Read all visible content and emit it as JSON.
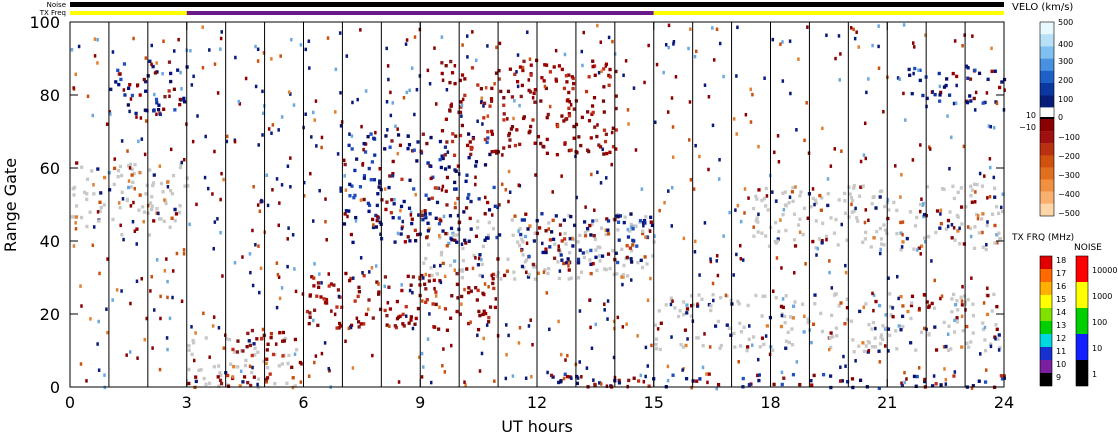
{
  "strip": {
    "noise_label": "Noise",
    "txfreq_label": "TX Freq",
    "noise_color": "#000000",
    "txfreq_segments": [
      {
        "from": 0,
        "to": 3,
        "color": "#ffff00"
      },
      {
        "from": 3,
        "to": 15,
        "color": "#6a1b8a"
      },
      {
        "from": 15,
        "to": 24,
        "color": "#ffff00"
      }
    ]
  },
  "chart_data": {
    "type": "heatmap",
    "xlabel": "UT hours",
    "ylabel": "Range Gate",
    "xlim": [
      0,
      24
    ],
    "ylim": [
      0,
      100
    ],
    "xticks": [
      "0",
      "3",
      "6",
      "9",
      "12",
      "15",
      "18",
      "21",
      "24"
    ],
    "yticks": [
      "0",
      "20",
      "40",
      "60",
      "80",
      "100"
    ],
    "ground_scatter_color": "#c8c8c8",
    "blobs": [
      {
        "t0": 0.0,
        "t1": 3.0,
        "g0": 42,
        "g1": 62,
        "kind": "gs"
      },
      {
        "t0": 3.0,
        "t1": 6.0,
        "g0": 0,
        "g1": 14,
        "kind": "gs"
      },
      {
        "t0": 3.5,
        "t1": 5.3,
        "g0": 0,
        "g1": 4,
        "kind": "neg"
      },
      {
        "t0": 3.8,
        "t1": 5.5,
        "g0": 8,
        "g1": 16,
        "kind": "neg"
      },
      {
        "t0": 6.0,
        "t1": 11.0,
        "g0": 16,
        "g1": 32,
        "kind": "neg"
      },
      {
        "t0": 9.0,
        "t1": 15.0,
        "g0": 30,
        "g1": 48,
        "kind": "gs"
      },
      {
        "t0": 11.5,
        "t1": 15.0,
        "g0": 34,
        "g1": 48,
        "kind": "pos"
      },
      {
        "t0": 15.0,
        "t1": 24.0,
        "g0": 10,
        "g1": 26,
        "kind": "gs"
      },
      {
        "t0": 17.5,
        "t1": 24.0,
        "g0": 38,
        "g1": 56,
        "kind": "gs"
      },
      {
        "t0": 12.0,
        "t1": 24.0,
        "g0": 0,
        "g1": 4,
        "kind": "pos"
      },
      {
        "t0": 7.0,
        "t1": 11.0,
        "g0": 40,
        "g1": 70,
        "kind": "pos"
      },
      {
        "t0": 1.0,
        "t1": 3.0,
        "g0": 75,
        "g1": 90,
        "kind": "pos"
      },
      {
        "t0": 9.5,
        "t1": 14.0,
        "g0": 64,
        "g1": 90,
        "kind": "neg"
      },
      {
        "t0": 21.5,
        "t1": 24.0,
        "g0": 78,
        "g1": 88,
        "kind": "pos"
      }
    ]
  },
  "velocity_legend": {
    "title": "VELO (km/s)",
    "labels": [
      "500",
      "400",
      "300",
      "200",
      "100",
      "0",
      "10",
      "−10",
      "−100",
      "−200",
      "−300",
      "−400",
      "−500"
    ]
  },
  "txfreq_legend": {
    "title": "TX FRQ (MHz)",
    "labels": [
      "18",
      "17",
      "16",
      "15",
      "14",
      "13",
      "12",
      "11",
      "10",
      "9"
    ],
    "colors": [
      "#e00000",
      "#ff6a00",
      "#ffb000",
      "#ffff00",
      "#80e000",
      "#00d000",
      "#00d8e0",
      "#1830d0",
      "#7a1fa0",
      "#000000"
    ]
  },
  "noise_legend": {
    "title": "NOISE",
    "labels": [
      "10000",
      "1000",
      "100",
      "10",
      "1"
    ],
    "colors": [
      "#ff0000",
      "#ffff00",
      "#00d000",
      "#1020ff",
      "#000000"
    ]
  }
}
